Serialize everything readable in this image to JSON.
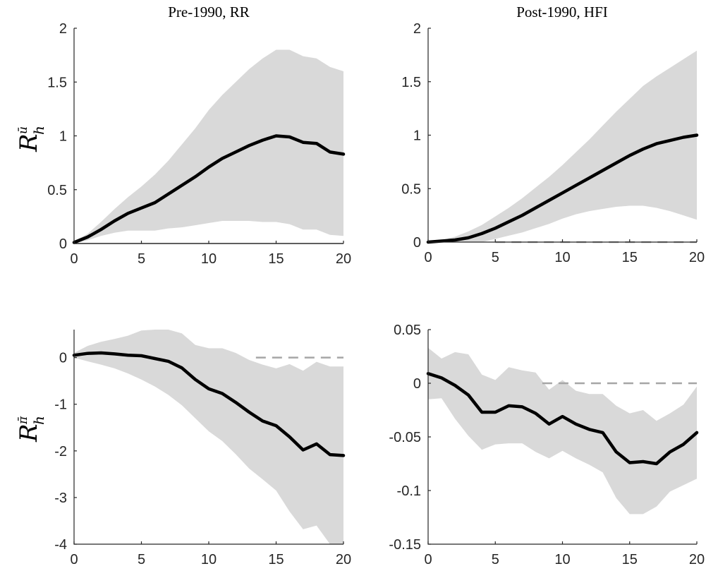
{
  "colors": {
    "band": "#d9d9d9",
    "median": "#000000",
    "zero_line": "#a6a6a6",
    "axis": "#262626"
  },
  "chart_data": [
    {
      "type": "area",
      "title": "Pre-1990, RR",
      "ylabel_symbol": "R",
      "ylabel_sub": "h",
      "ylabel_sup": "ū",
      "xlim": [
        0,
        20
      ],
      "ylim": [
        0,
        2
      ],
      "xticks": [
        0,
        5,
        10,
        15,
        20
      ],
      "yticks": [
        0,
        0.5,
        1,
        1.5,
        2
      ],
      "ytick_labels": [
        "0",
        "0.5",
        "1",
        "1.5",
        "2"
      ],
      "x": [
        0,
        1,
        2,
        3,
        4,
        5,
        6,
        7,
        8,
        9,
        10,
        11,
        12,
        13,
        14,
        15,
        16,
        17,
        18,
        19,
        20
      ],
      "zero_line_from": 0,
      "zero_line_dashed": false,
      "series": [
        {
          "role": "median",
          "values": [
            0.01,
            0.06,
            0.13,
            0.21,
            0.28,
            0.33,
            0.38,
            0.46,
            0.54,
            0.62,
            0.71,
            0.79,
            0.85,
            0.91,
            0.96,
            1.0,
            0.99,
            0.94,
            0.93,
            0.85,
            0.83
          ]
        },
        {
          "role": "upper",
          "values": [
            0.02,
            0.09,
            0.2,
            0.32,
            0.43,
            0.53,
            0.64,
            0.77,
            0.92,
            1.07,
            1.24,
            1.38,
            1.5,
            1.62,
            1.72,
            1.8,
            1.8,
            1.74,
            1.72,
            1.64,
            1.6
          ]
        },
        {
          "role": "lower",
          "values": [
            0.0,
            0.03,
            0.07,
            0.1,
            0.12,
            0.12,
            0.12,
            0.14,
            0.15,
            0.17,
            0.19,
            0.21,
            0.21,
            0.21,
            0.2,
            0.2,
            0.18,
            0.13,
            0.13,
            0.08,
            0.07
          ]
        }
      ]
    },
    {
      "type": "area",
      "title": "Post-1990, HFI",
      "ylabel_symbol": "",
      "ylabel_sub": "",
      "ylabel_sup": "",
      "xlim": [
        0,
        20
      ],
      "ylim": [
        0,
        2
      ],
      "xticks": [
        0,
        5,
        10,
        15,
        20
      ],
      "yticks": [
        0,
        0.5,
        1,
        1.5,
        2
      ],
      "ytick_labels": [
        "0",
        "0.5",
        "1",
        "1.5",
        "2"
      ],
      "x": [
        0,
        1,
        2,
        3,
        4,
        5,
        6,
        7,
        8,
        9,
        10,
        11,
        12,
        13,
        14,
        15,
        16,
        17,
        18,
        19,
        20
      ],
      "zero_line_from": 5,
      "zero_line_dashed": true,
      "series": [
        {
          "role": "median",
          "values": [
            0.0,
            0.01,
            0.02,
            0.04,
            0.08,
            0.13,
            0.19,
            0.25,
            0.32,
            0.39,
            0.46,
            0.53,
            0.6,
            0.67,
            0.74,
            0.81,
            0.87,
            0.92,
            0.95,
            0.98,
            1.0
          ]
        },
        {
          "role": "upper",
          "values": [
            0.0,
            0.02,
            0.05,
            0.1,
            0.16,
            0.24,
            0.32,
            0.41,
            0.51,
            0.61,
            0.72,
            0.84,
            0.96,
            1.09,
            1.22,
            1.34,
            1.46,
            1.55,
            1.63,
            1.71,
            1.79
          ]
        },
        {
          "role": "lower",
          "values": [
            -0.01,
            -0.01,
            -0.01,
            -0.01,
            0.0,
            0.03,
            0.06,
            0.09,
            0.13,
            0.17,
            0.22,
            0.26,
            0.29,
            0.31,
            0.33,
            0.34,
            0.34,
            0.32,
            0.29,
            0.25,
            0.21
          ]
        }
      ]
    },
    {
      "type": "area",
      "title": "",
      "ylabel_symbol": "R",
      "ylabel_sub": "h",
      "ylabel_sup": "π̄",
      "xlim": [
        0,
        20
      ],
      "ylim": [
        -4,
        0.6
      ],
      "xticks": [
        0,
        5,
        10,
        15,
        20
      ],
      "yticks": [
        -4,
        -3,
        -2,
        -1,
        0
      ],
      "ytick_labels": [
        "-4",
        "-3",
        "-2",
        "-1",
        "0"
      ],
      "x": [
        0,
        1,
        2,
        3,
        4,
        5,
        6,
        7,
        8,
        9,
        10,
        11,
        12,
        13,
        14,
        15,
        16,
        17,
        18,
        19,
        20
      ],
      "zero_line_from": 13.5,
      "zero_line_dashed": true,
      "series": [
        {
          "role": "median",
          "values": [
            0.05,
            0.09,
            0.1,
            0.08,
            0.05,
            0.04,
            -0.02,
            -0.08,
            -0.22,
            -0.47,
            -0.67,
            -0.77,
            -0.96,
            -1.17,
            -1.36,
            -1.46,
            -1.7,
            -1.98,
            -1.85,
            -2.08,
            -2.1
          ]
        },
        {
          "role": "upper",
          "values": [
            0.1,
            0.25,
            0.34,
            0.4,
            0.47,
            0.58,
            0.62,
            0.6,
            0.52,
            0.27,
            0.2,
            0.2,
            0.1,
            -0.05,
            -0.15,
            -0.23,
            -0.14,
            -0.28,
            -0.09,
            -0.19,
            -0.19
          ]
        },
        {
          "role": "lower",
          "values": [
            0.0,
            -0.08,
            -0.15,
            -0.23,
            -0.34,
            -0.47,
            -0.62,
            -0.8,
            -1.02,
            -1.3,
            -1.58,
            -1.79,
            -2.07,
            -2.38,
            -2.61,
            -2.85,
            -3.3,
            -3.68,
            -3.6,
            -4.0,
            -4.1
          ]
        }
      ]
    },
    {
      "type": "area",
      "title": "",
      "ylabel_symbol": "",
      "ylabel_sub": "",
      "ylabel_sup": "",
      "xlim": [
        0,
        20
      ],
      "ylim": [
        -0.15,
        0.05
      ],
      "xticks": [
        0,
        5,
        10,
        15,
        20
      ],
      "yticks": [
        -0.15,
        -0.1,
        -0.05,
        0,
        0.05
      ],
      "ytick_labels": [
        "-0.15",
        "-0.1",
        "-0.05",
        "0",
        "0.05"
      ],
      "x": [
        0,
        1,
        2,
        3,
        4,
        5,
        6,
        7,
        8,
        9,
        10,
        11,
        12,
        13,
        14,
        15,
        16,
        17,
        18,
        19,
        20
      ],
      "zero_line_from": 8.5,
      "zero_line_dashed": true,
      "series": [
        {
          "role": "median",
          "values": [
            0.009,
            0.005,
            -0.002,
            -0.011,
            -0.027,
            -0.027,
            -0.021,
            -0.022,
            -0.028,
            -0.038,
            -0.031,
            -0.038,
            -0.043,
            -0.046,
            -0.064,
            -0.074,
            -0.073,
            -0.075,
            -0.064,
            -0.057,
            -0.046
          ]
        },
        {
          "role": "upper",
          "values": [
            0.033,
            0.023,
            0.029,
            0.027,
            0.008,
            0.003,
            0.015,
            0.012,
            0.01,
            -0.006,
            0.003,
            -0.007,
            -0.01,
            -0.01,
            -0.021,
            -0.028,
            -0.025,
            -0.035,
            -0.028,
            -0.02,
            -0.003
          ]
        },
        {
          "role": "lower",
          "values": [
            -0.015,
            -0.014,
            -0.033,
            -0.049,
            -0.062,
            -0.057,
            -0.056,
            -0.056,
            -0.064,
            -0.07,
            -0.063,
            -0.07,
            -0.076,
            -0.083,
            -0.107,
            -0.122,
            -0.122,
            -0.115,
            -0.101,
            -0.095,
            -0.089
          ]
        }
      ]
    }
  ]
}
